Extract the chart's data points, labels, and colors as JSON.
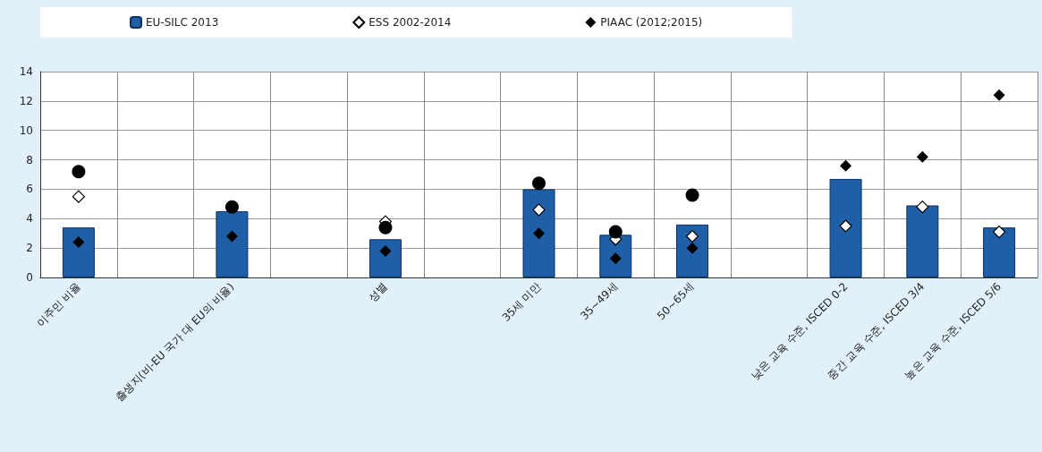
{
  "chart_data": {
    "type": "bar",
    "categories": [
      "이주민 비율",
      null,
      "출생지(비-EU 국가 대 EU의 비율)",
      null,
      "성별",
      null,
      "35세 미만",
      "35~49세",
      "50~65세",
      null,
      "낮은 교육 수준, ISCED 0-2",
      "중간 교육 수준, ISCED 3/4",
      "높은 교육 수준, ISCED 5/6"
    ],
    "series": [
      {
        "name": "EU-SILC 2013",
        "type": "bar",
        "color": "#1f5fa8",
        "values": [
          3.4,
          null,
          4.5,
          null,
          2.6,
          null,
          6.0,
          2.9,
          3.6,
          null,
          6.7,
          4.9,
          3.4
        ]
      },
      {
        "name": "ESS 2002-2014",
        "type": "scatter",
        "marker": "diamond",
        "color": "#ffffff",
        "values": [
          5.5,
          null,
          null,
          null,
          3.8,
          null,
          4.6,
          2.6,
          2.8,
          null,
          3.5,
          4.8,
          3.1
        ]
      },
      {
        "name": "PIAAC (2012;2015)",
        "type": "scatter",
        "marker": "diamond",
        "color": "#000000",
        "values": [
          2.4,
          null,
          2.8,
          null,
          1.8,
          null,
          3.0,
          1.3,
          2.0,
          null,
          7.6,
          8.2,
          12.4
        ]
      },
      {
        "type": "scatter",
        "marker": "circle",
        "color": "#000000",
        "values": [
          7.2,
          null,
          4.8,
          null,
          3.4,
          null,
          6.4,
          3.1,
          5.6,
          null,
          null,
          null,
          null
        ]
      }
    ],
    "ylim": [
      0,
      14
    ],
    "yticks": [
      0,
      2,
      4,
      6,
      8,
      10,
      12,
      14
    ],
    "grid": true,
    "legend": "top"
  }
}
